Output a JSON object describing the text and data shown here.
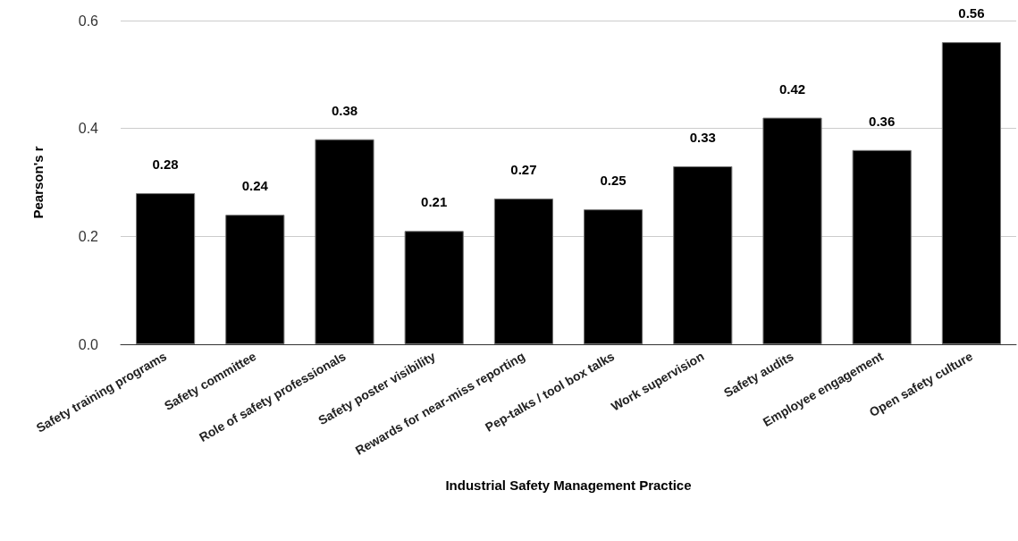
{
  "chart_data": {
    "type": "bar",
    "xlabel": "Industrial Safety Management Practice",
    "ylabel": "Pearson's r",
    "categories": [
      "Safety training programs",
      "Safety committee",
      "Role of safety professionals",
      "Safety poster visibility",
      "Rewards for near-miss reporting",
      "Pep-talks / tool box talks",
      "Work supervision",
      "Safety audits",
      "Employee engagement",
      "Open safety culture"
    ],
    "values": [
      0.28,
      0.24,
      0.38,
      0.21,
      0.27,
      0.25,
      0.33,
      0.42,
      0.36,
      0.56
    ],
    "color": "#000000",
    "ylim": [
      0,
      0.6
    ],
    "yticks": [
      {
        "value": 0,
        "label": "0.0"
      },
      {
        "value": 0.2,
        "label": "0.2"
      },
      {
        "value": 0.4,
        "label": "0.4"
      },
      {
        "value": 0.6,
        "label": "0.6"
      }
    ],
    "grid": "y",
    "data_labels": true
  }
}
